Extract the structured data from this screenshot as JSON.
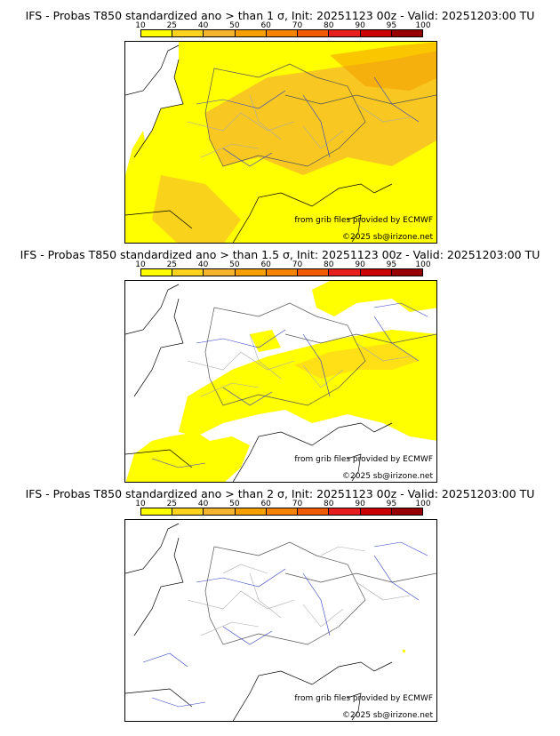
{
  "scale": {
    "labels": [
      "10",
      "25",
      "40",
      "50",
      "60",
      "70",
      "80",
      "90",
      "95",
      "100"
    ],
    "colors": [
      "#ffff00",
      "#ffd21e",
      "#f5b42d",
      "#f5a000",
      "#f58200",
      "#f05a00",
      "#e61e1e",
      "#c80000",
      "#960000",
      "#5a0000"
    ]
  },
  "panels": [
    {
      "title": "IFS - Probas T850  standardized ano > than 1 σ, Init: 20251123 00z - Valid: 20251203:00 TU",
      "source_note": "from grib files provided by ECMWF",
      "copyright": "©2025 sb@irizone.net"
    },
    {
      "title": "IFS - Probas T850  standardized ano > than 1.5 σ, Init: 20251123 00z - Valid: 20251203:00 TU",
      "source_note": "from grib files provided by ECMWF",
      "copyright": "©2025 sb@irizone.net"
    },
    {
      "title": "IFS - Probas T850  standardized ano > than 2 σ, Init: 20251123 00z - Valid: 20251203:00 TU",
      "source_note": "from grib files provided by ECMWF",
      "copyright": "©2025 sb@irizone.net"
    }
  ]
}
